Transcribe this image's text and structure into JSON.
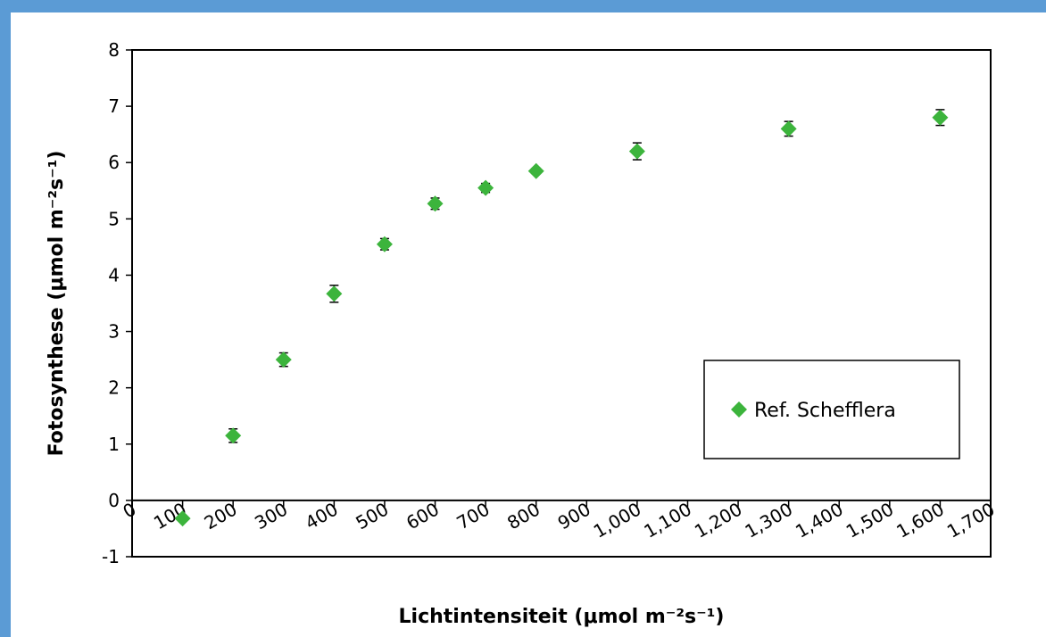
{
  "chart_data": {
    "type": "scatter",
    "title": "",
    "xlabel": "Lichtintensiteit (μmol m⁻²s⁻¹)",
    "ylabel": "Fotosynthese (μmol m⁻²s⁻¹)",
    "xlim": [
      0,
      1700
    ],
    "ylim": [
      -1,
      8
    ],
    "x_ticks": [
      "0",
      "100",
      "200",
      "300",
      "400",
      "500",
      "600",
      "700",
      "800",
      "900",
      "1,000",
      "1,100",
      "1,200",
      "1,300",
      "1,400",
      "1,500",
      "1,600",
      "1,700"
    ],
    "y_ticks": [
      "-1",
      "0",
      "1",
      "2",
      "3",
      "4",
      "5",
      "6",
      "7",
      "8"
    ],
    "grid": false,
    "legend_position": "lower-right",
    "series": [
      {
        "name": "Ref. Schefflera",
        "color": "#3cb43c",
        "marker": "diamond",
        "x": [
          100,
          200,
          300,
          400,
          500,
          600,
          700,
          800,
          1000,
          1300,
          1600
        ],
        "y": [
          -0.32,
          1.15,
          2.5,
          3.67,
          4.55,
          5.27,
          5.55,
          5.85,
          6.2,
          6.6,
          6.8
        ],
        "error": [
          0.05,
          0.12,
          0.12,
          0.15,
          0.1,
          0.1,
          0.08,
          0.05,
          0.15,
          0.13,
          0.14
        ]
      }
    ]
  }
}
